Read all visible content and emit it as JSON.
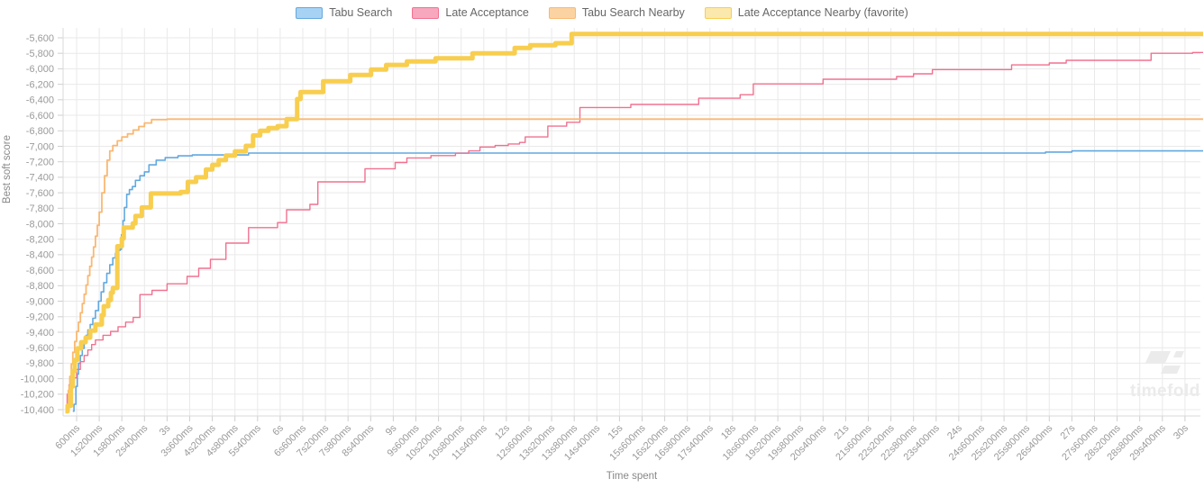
{
  "watermark": {
    "text": "timefold"
  },
  "chart_data": {
    "type": "line",
    "step_mode": "after",
    "title": "",
    "grid": true,
    "legend_position": "top",
    "x_axis": {
      "label": "Time spent",
      "tick_interval_seconds": 0.6,
      "ticks": [
        "600ms",
        "1s200ms",
        "1s800ms",
        "2s400ms",
        "3s",
        "3s600ms",
        "4s200ms",
        "4s800ms",
        "5s400ms",
        "6s",
        "6s600ms",
        "7s200ms",
        "7s800ms",
        "8s400ms",
        "9s",
        "9s600ms",
        "10s200ms",
        "10s800ms",
        "11s400ms",
        "12s",
        "12s600ms",
        "13s200ms",
        "13s800ms",
        "14s400ms",
        "15s",
        "15s600ms",
        "16s200ms",
        "16s800ms",
        "17s400ms",
        "18s",
        "18s600ms",
        "19s200ms",
        "19s800ms",
        "20s400ms",
        "21s",
        "21s600ms",
        "22s200ms",
        "22s800ms",
        "23s400ms",
        "24s",
        "24s600ms",
        "25s200ms",
        "25s800ms",
        "26s400ms",
        "27s",
        "27s600ms",
        "28s200ms",
        "28s800ms",
        "29s400ms",
        "30s"
      ],
      "range_seconds": [
        0.24,
        30.46
      ]
    },
    "y_axis": {
      "label": "Best soft score",
      "ticks": [
        "-5,600",
        "-5,800",
        "-6,000",
        "-6,200",
        "-6,400",
        "-6,600",
        "-6,800",
        "-7,000",
        "-7,200",
        "-7,400",
        "-7,600",
        "-7,800",
        "-8,000",
        "-8,200",
        "-8,400",
        "-8,600",
        "-8,800",
        "-9,000",
        "-9,200",
        "-9,400",
        "-9,600",
        "-9,800",
        "-10,000",
        "-10,200",
        "-10,400"
      ],
      "tick_values": [
        -5600,
        -5800,
        -6000,
        -6200,
        -6400,
        -6600,
        -6800,
        -7000,
        -7200,
        -7400,
        -7600,
        -7800,
        -8000,
        -8200,
        -8400,
        -8600,
        -8800,
        -9000,
        -9200,
        -9400,
        -9600,
        -9800,
        -10000,
        -10200,
        -10400
      ],
      "range": [
        -10480,
        -5470
      ]
    },
    "colors": {
      "grid": "#e9e9e9",
      "axis": "#d8d8d8",
      "tick_mark": "#cfcfcf",
      "tick_label": "#9a9a9a",
      "axis_title": "#888888",
      "legend_text": "#666666",
      "watermark": "#ebebeb"
    },
    "series": [
      {
        "name": "Tabu Search",
        "color": "#62a8e0",
        "fill": "#a8d2f3",
        "width": 1.6,
        "final_value": -7060,
        "points": [
          [
            0.5,
            -10420
          ],
          [
            0.53,
            -10330
          ],
          [
            0.58,
            -10100
          ],
          [
            0.62,
            -9940
          ],
          [
            0.65,
            -9800
          ],
          [
            0.7,
            -9700
          ],
          [
            0.75,
            -9610
          ],
          [
            0.8,
            -9520
          ],
          [
            0.85,
            -9440
          ],
          [
            0.9,
            -9370
          ],
          [
            0.96,
            -9300
          ],
          [
            1.03,
            -9220
          ],
          [
            1.1,
            -9120
          ],
          [
            1.18,
            -9000
          ],
          [
            1.25,
            -8880
          ],
          [
            1.32,
            -8760
          ],
          [
            1.4,
            -8640
          ],
          [
            1.48,
            -8530
          ],
          [
            1.56,
            -8440
          ],
          [
            1.63,
            -8380
          ],
          [
            1.7,
            -8345
          ],
          [
            1.75,
            -8330
          ],
          [
            1.79,
            -8140
          ],
          [
            1.83,
            -7960
          ],
          [
            1.87,
            -7790
          ],
          [
            1.93,
            -7620
          ],
          [
            2.0,
            -7560
          ],
          [
            2.08,
            -7520
          ],
          [
            2.16,
            -7440
          ],
          [
            2.28,
            -7380
          ],
          [
            2.4,
            -7330
          ],
          [
            2.52,
            -7240
          ],
          [
            2.71,
            -7180
          ],
          [
            2.95,
            -7147
          ],
          [
            3.29,
            -7124
          ],
          [
            3.67,
            -7112
          ],
          [
            5.16,
            -7088
          ],
          [
            26.3,
            -7075
          ],
          [
            27.0,
            -7060
          ]
        ]
      },
      {
        "name": "Late Acceptance",
        "color": "#f1718f",
        "fill": "#f7a8be",
        "width": 1.4,
        "final_value": -5790,
        "points": [
          [
            0.3,
            -10420
          ],
          [
            0.35,
            -10200
          ],
          [
            0.4,
            -10080
          ],
          [
            0.5,
            -9990
          ],
          [
            0.6,
            -9880
          ],
          [
            0.7,
            -9780
          ],
          [
            0.8,
            -9700
          ],
          [
            0.9,
            -9630
          ],
          [
            1.0,
            -9560
          ],
          [
            1.1,
            -9500
          ],
          [
            1.3,
            -9440
          ],
          [
            1.5,
            -9390
          ],
          [
            1.7,
            -9330
          ],
          [
            1.9,
            -9270
          ],
          [
            2.1,
            -9210
          ],
          [
            2.28,
            -8915
          ],
          [
            2.6,
            -8860
          ],
          [
            3.0,
            -8775
          ],
          [
            3.53,
            -8680
          ],
          [
            3.84,
            -8575
          ],
          [
            4.15,
            -8460
          ],
          [
            4.56,
            -8250
          ],
          [
            5.16,
            -8050
          ],
          [
            5.93,
            -7985
          ],
          [
            6.17,
            -7820
          ],
          [
            6.79,
            -7750
          ],
          [
            7.0,
            -7460
          ],
          [
            8.25,
            -7290
          ],
          [
            9.05,
            -7210
          ],
          [
            9.36,
            -7150
          ],
          [
            10.0,
            -7120
          ],
          [
            10.65,
            -7090
          ],
          [
            11.0,
            -7060
          ],
          [
            11.3,
            -7010
          ],
          [
            11.7,
            -6990
          ],
          [
            12.05,
            -6970
          ],
          [
            12.35,
            -6950
          ],
          [
            12.5,
            -6880
          ],
          [
            13.1,
            -6740
          ],
          [
            13.6,
            -6690
          ],
          [
            13.95,
            -6500
          ],
          [
            15.3,
            -6460
          ],
          [
            17.1,
            -6380
          ],
          [
            18.2,
            -6335
          ],
          [
            18.55,
            -6195
          ],
          [
            20.4,
            -6135
          ],
          [
            22.35,
            -6100
          ],
          [
            22.8,
            -6065
          ],
          [
            23.3,
            -6010
          ],
          [
            25.4,
            -5950
          ],
          [
            26.4,
            -5925
          ],
          [
            26.85,
            -5890
          ],
          [
            29.1,
            -5800
          ],
          [
            30.2,
            -5790
          ]
        ]
      },
      {
        "name": "Tabu Search Nearby",
        "color": "#f9b873",
        "fill": "#fbd3a2",
        "width": 1.8,
        "final_value": -6650,
        "points": [
          [
            0.3,
            -10420
          ],
          [
            0.34,
            -10350
          ],
          [
            0.38,
            -10150
          ],
          [
            0.42,
            -9970
          ],
          [
            0.46,
            -9810
          ],
          [
            0.5,
            -9660
          ],
          [
            0.55,
            -9520
          ],
          [
            0.6,
            -9390
          ],
          [
            0.65,
            -9270
          ],
          [
            0.7,
            -9150
          ],
          [
            0.75,
            -9030
          ],
          [
            0.8,
            -8910
          ],
          [
            0.85,
            -8790
          ],
          [
            0.9,
            -8670
          ],
          [
            0.95,
            -8550
          ],
          [
            1.0,
            -8430
          ],
          [
            1.05,
            -8300
          ],
          [
            1.1,
            -8160
          ],
          [
            1.15,
            -8020
          ],
          [
            1.2,
            -7850
          ],
          [
            1.27,
            -7600
          ],
          [
            1.34,
            -7380
          ],
          [
            1.41,
            -7180
          ],
          [
            1.48,
            -7060
          ],
          [
            1.56,
            -6990
          ],
          [
            1.68,
            -6930
          ],
          [
            1.8,
            -6880
          ],
          [
            1.95,
            -6840
          ],
          [
            2.1,
            -6790
          ],
          [
            2.25,
            -6745
          ],
          [
            2.4,
            -6700
          ],
          [
            2.59,
            -6655
          ],
          [
            3.0,
            -6650
          ]
        ]
      },
      {
        "name": "Late Acceptance Nearby (favorite)",
        "color": "#f8ce4f",
        "fill": "#fbe8ad",
        "width": 5,
        "final_value": -5550,
        "points": [
          [
            0.3,
            -10420
          ],
          [
            0.36,
            -10350
          ],
          [
            0.45,
            -10100
          ],
          [
            0.5,
            -9900
          ],
          [
            0.55,
            -9760
          ],
          [
            0.62,
            -9610
          ],
          [
            0.72,
            -9530
          ],
          [
            0.84,
            -9470
          ],
          [
            0.96,
            -9380
          ],
          [
            1.1,
            -9300
          ],
          [
            1.27,
            -9180
          ],
          [
            1.32,
            -9065
          ],
          [
            1.44,
            -8985
          ],
          [
            1.51,
            -8890
          ],
          [
            1.56,
            -8830
          ],
          [
            1.68,
            -8290
          ],
          [
            1.8,
            -8190
          ],
          [
            1.85,
            -8050
          ],
          [
            2.09,
            -7995
          ],
          [
            2.16,
            -7900
          ],
          [
            2.33,
            -7790
          ],
          [
            2.57,
            -7610
          ],
          [
            3.36,
            -7590
          ],
          [
            3.55,
            -7460
          ],
          [
            3.77,
            -7400
          ],
          [
            4.03,
            -7300
          ],
          [
            4.2,
            -7240
          ],
          [
            4.37,
            -7180
          ],
          [
            4.56,
            -7120
          ],
          [
            4.8,
            -7065
          ],
          [
            5.09,
            -6995
          ],
          [
            5.28,
            -6860
          ],
          [
            5.47,
            -6800
          ],
          [
            5.69,
            -6765
          ],
          [
            5.93,
            -6740
          ],
          [
            6.17,
            -6650
          ],
          [
            6.45,
            -6390
          ],
          [
            6.54,
            -6300
          ],
          [
            7.14,
            -6160
          ],
          [
            7.86,
            -6080
          ],
          [
            8.41,
            -6010
          ],
          [
            8.81,
            -5950
          ],
          [
            9.36,
            -5905
          ],
          [
            10.12,
            -5865
          ],
          [
            11.1,
            -5800
          ],
          [
            12.22,
            -5730
          ],
          [
            12.63,
            -5695
          ],
          [
            13.3,
            -5670
          ],
          [
            13.73,
            -5550
          ]
        ]
      }
    ]
  }
}
